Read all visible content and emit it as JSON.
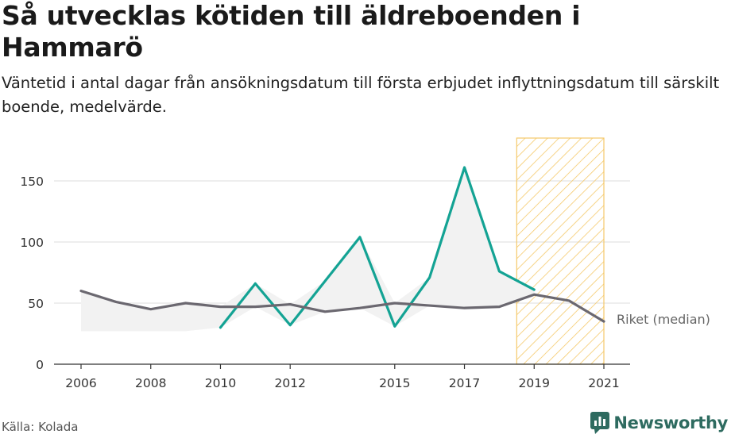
{
  "header": {
    "title": "Så utvecklas kötiden till äldreboenden i Hammarö",
    "subtitle": "Väntetid i antal dagar från ansökningsdatum till första erbjudet inflyttningsdatum till särskilt boende, medelvärde."
  },
  "footer": {
    "source": "Källa: Kolada",
    "brand": "Newsworthy"
  },
  "colors": {
    "local_series": "#14a394",
    "national_series": "#6b6870",
    "fill": "#f2f2f2",
    "highlight_hatch": "#f5c96a",
    "grid": "#dddddd",
    "axis": "#333333",
    "brand": "#2e6b60"
  },
  "chart_data": {
    "type": "line",
    "x": [
      2006,
      2007,
      2008,
      2009,
      2010,
      2011,
      2012,
      2013,
      2014,
      2015,
      2016,
      2017,
      2018,
      2019,
      2020,
      2021
    ],
    "xticks": [
      2006,
      2008,
      2010,
      2012,
      2015,
      2017,
      2019,
      2021
    ],
    "yticks": [
      0,
      50,
      100,
      150
    ],
    "xlim": [
      2006,
      2021
    ],
    "ylim": [
      0,
      150
    ],
    "grid": true,
    "series": [
      {
        "values": [
          null,
          null,
          null,
          null,
          30,
          66,
          32,
          68,
          104,
          31,
          71,
          161,
          76,
          61,
          null,
          null
        ]
      },
      {
        "name": "Riket (median)",
        "values": [
          60,
          51,
          45,
          50,
          47,
          47,
          49,
          43,
          46,
          50,
          48,
          46,
          47,
          57,
          52,
          35
        ]
      }
    ],
    "highlight_range": [
      2018.5,
      2021
    ]
  }
}
